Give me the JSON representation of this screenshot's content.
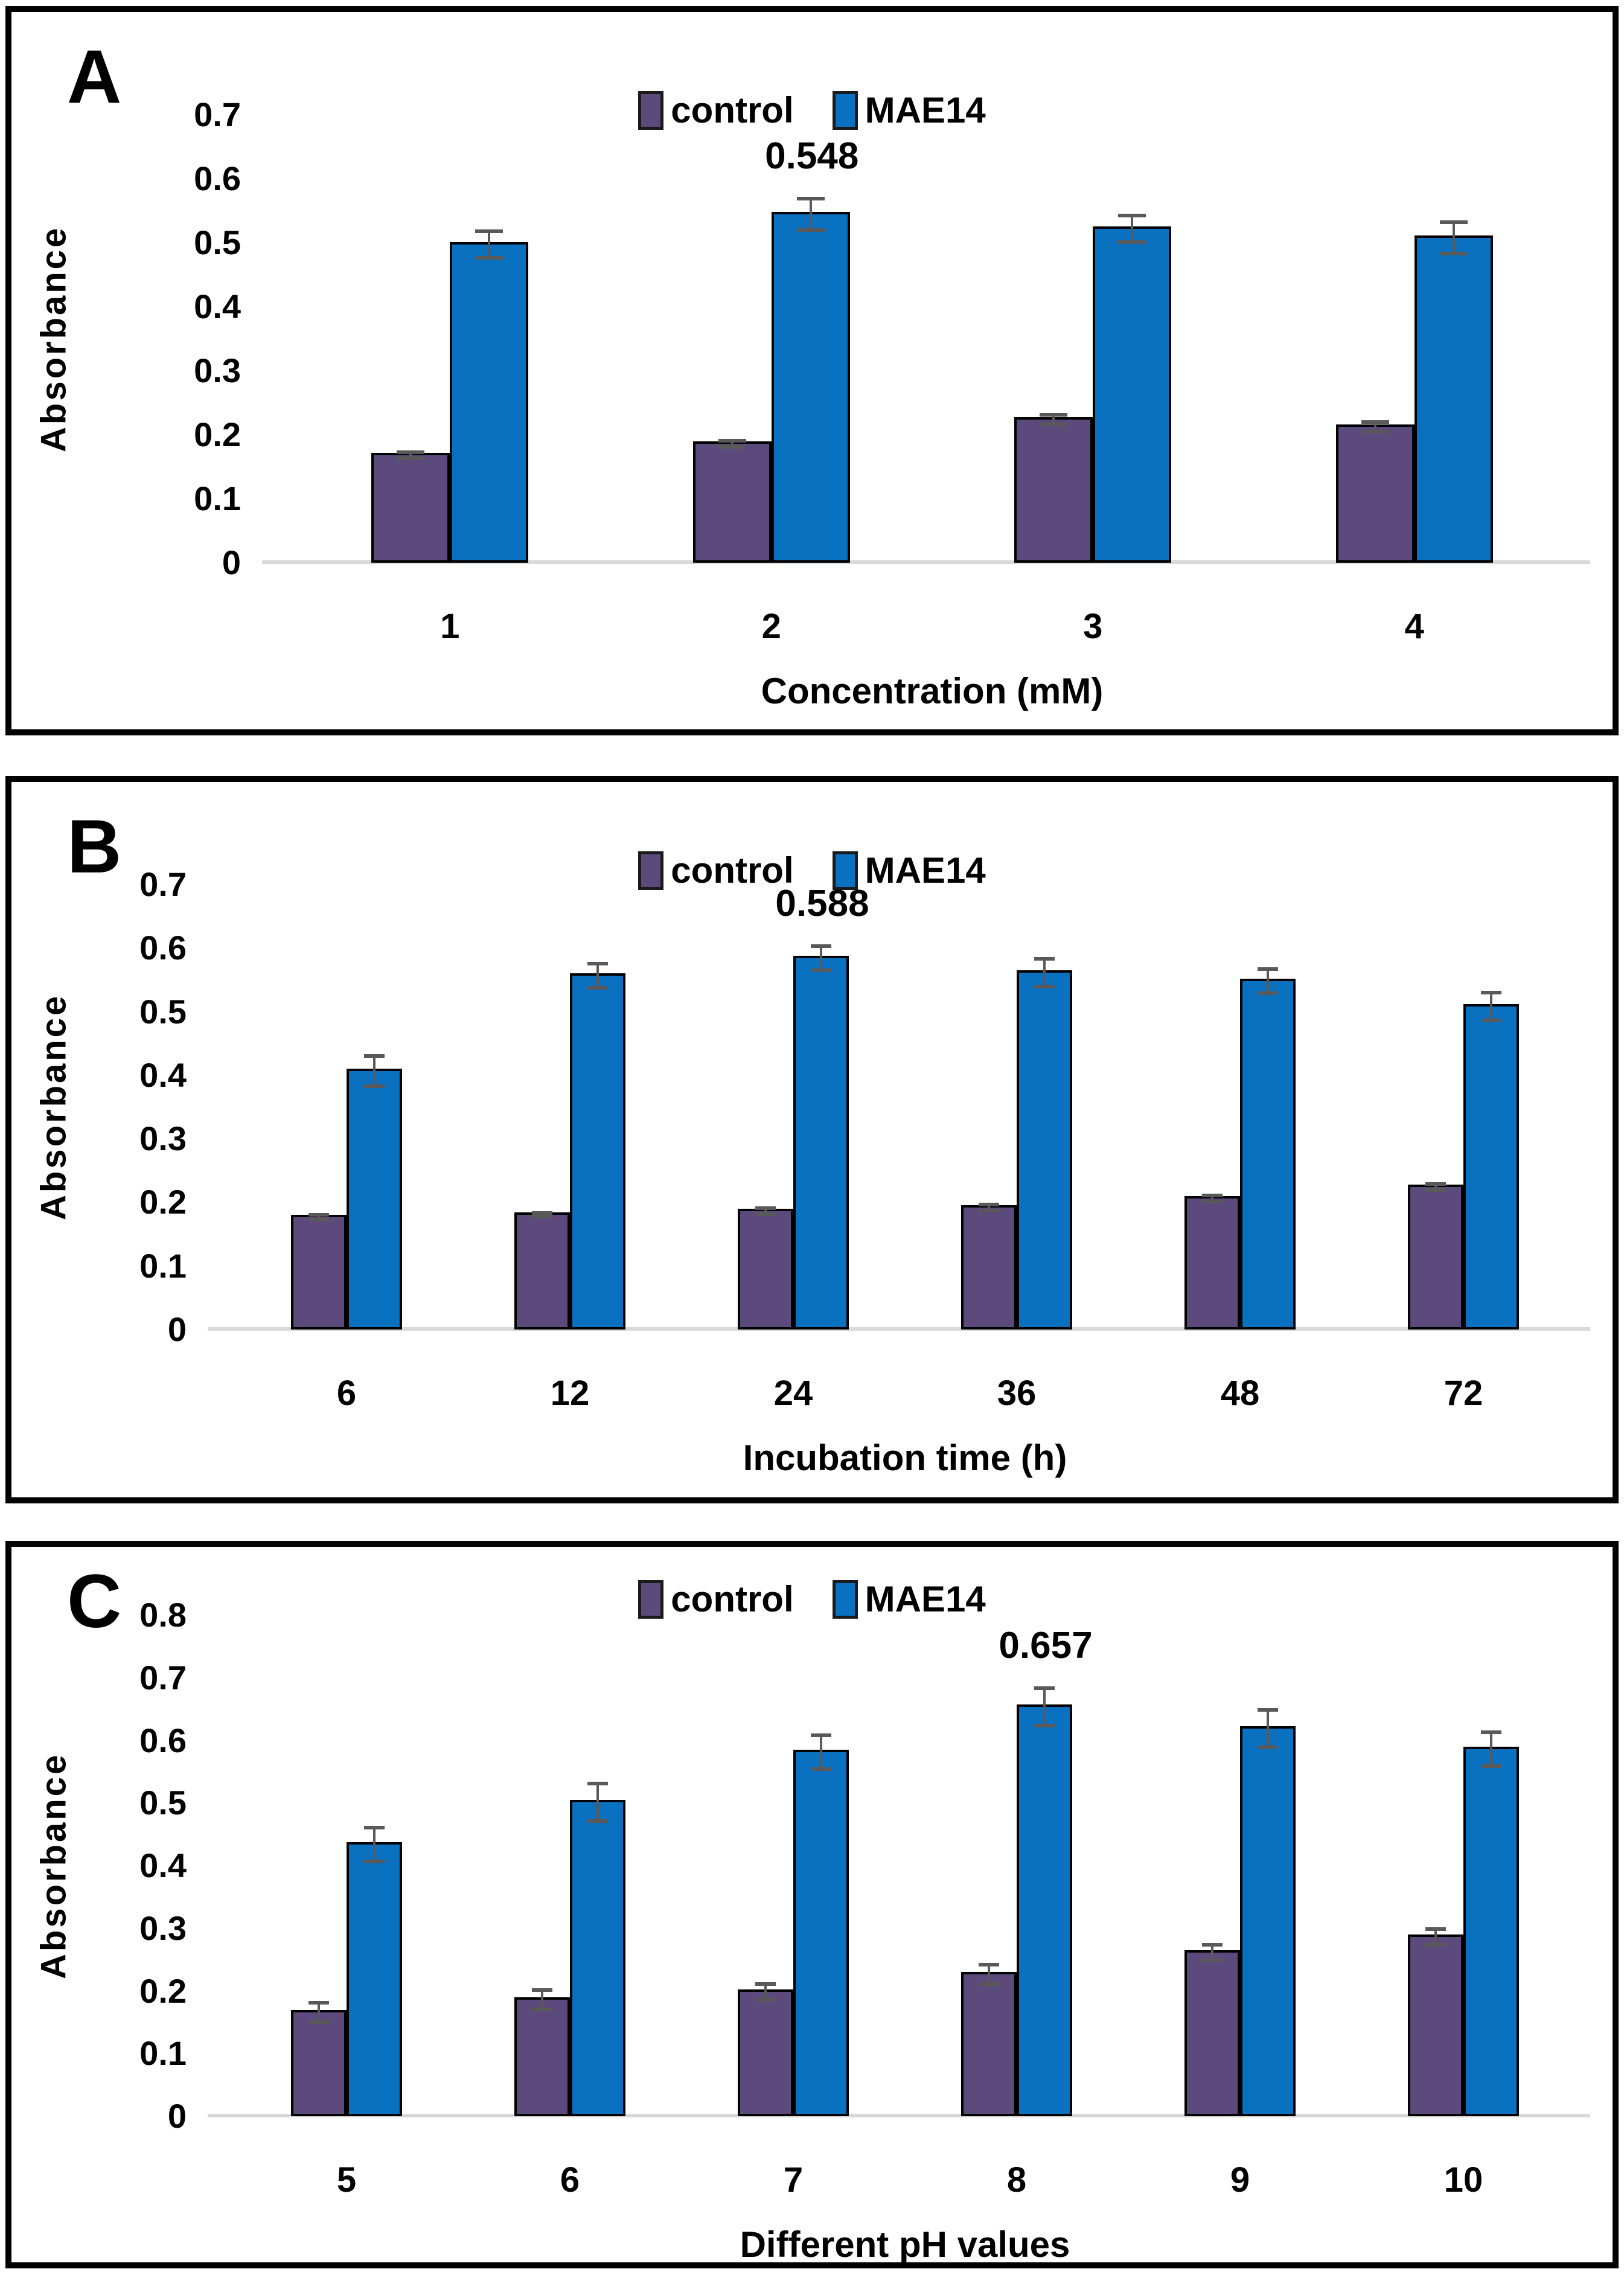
{
  "figure": {
    "panels": [
      {
        "label": "A"
      },
      {
        "label": "B"
      },
      {
        "label": "C"
      }
    ]
  },
  "colors": {
    "control": "#5C4A7D",
    "mae14": "#0A71C0",
    "error_bar": "#595959",
    "baseline": "#D9D9D9",
    "border": "#000000"
  },
  "chart_data": [
    {
      "type": "bar",
      "title": "",
      "categories": [
        "1",
        "2",
        "3",
        "4"
      ],
      "series": [
        {
          "name": "control",
          "color": "#5C4A7D",
          "values": [
            0.172,
            0.19,
            0.227,
            0.216
          ],
          "errors": [
            0.008,
            0.008,
            0.01,
            0.01
          ]
        },
        {
          "name": "MAE14",
          "color": "#0A71C0",
          "values": [
            0.501,
            0.548,
            0.525,
            0.511
          ],
          "errors": [
            0.024,
            0.027,
            0.024,
            0.027
          ]
        }
      ],
      "xlabel": "Concentration (mM)",
      "ylabel": "Absorbance",
      "ylim": [
        0,
        0.7
      ],
      "ytick_step": 0.1,
      "grid": false,
      "legend_position": "top-center",
      "annotation": {
        "text": "0.548",
        "series": "MAE14",
        "category_index": 1
      }
    },
    {
      "type": "bar",
      "title": "",
      "categories": [
        "6",
        "12",
        "24",
        "36",
        "48",
        "72"
      ],
      "series": [
        {
          "name": "control",
          "color": "#5C4A7D",
          "values": [
            0.18,
            0.184,
            0.19,
            0.196,
            0.21,
            0.228
          ],
          "errors": [
            0.007,
            0.006,
            0.008,
            0.008,
            0.008,
            0.008
          ]
        },
        {
          "name": "MAE14",
          "color": "#0A71C0",
          "values": [
            0.41,
            0.56,
            0.588,
            0.565,
            0.552,
            0.512
          ],
          "errors": [
            0.027,
            0.022,
            0.022,
            0.025,
            0.022,
            0.025
          ]
        }
      ],
      "xlabel": "Incubation time (h)",
      "ylabel": "Absorbance",
      "ylim": [
        0,
        0.7
      ],
      "ytick_step": 0.1,
      "grid": false,
      "legend_position": "top-center",
      "annotation": {
        "text": "0.588",
        "series": "MAE14",
        "category_index": 2
      }
    },
    {
      "type": "bar",
      "title": "",
      "categories": [
        "5",
        "6",
        "7",
        "8",
        "9",
        "10"
      ],
      "series": [
        {
          "name": "control",
          "color": "#5C4A7D",
          "values": [
            0.17,
            0.19,
            0.202,
            0.23,
            0.265,
            0.29
          ],
          "errors": [
            0.018,
            0.018,
            0.015,
            0.018,
            0.015,
            0.015
          ]
        },
        {
          "name": "MAE14",
          "color": "#0A71C0",
          "values": [
            0.438,
            0.505,
            0.585,
            0.657,
            0.623,
            0.59
          ],
          "errors": [
            0.03,
            0.033,
            0.03,
            0.033,
            0.033,
            0.03
          ]
        }
      ],
      "xlabel": "Different pH values",
      "ylabel": "Absorbance",
      "ylim": [
        0,
        0.8
      ],
      "ytick_step": 0.1,
      "grid": false,
      "legend_position": "top-center",
      "annotation": {
        "text": "0.657",
        "series": "MAE14",
        "category_index": 3
      }
    }
  ]
}
